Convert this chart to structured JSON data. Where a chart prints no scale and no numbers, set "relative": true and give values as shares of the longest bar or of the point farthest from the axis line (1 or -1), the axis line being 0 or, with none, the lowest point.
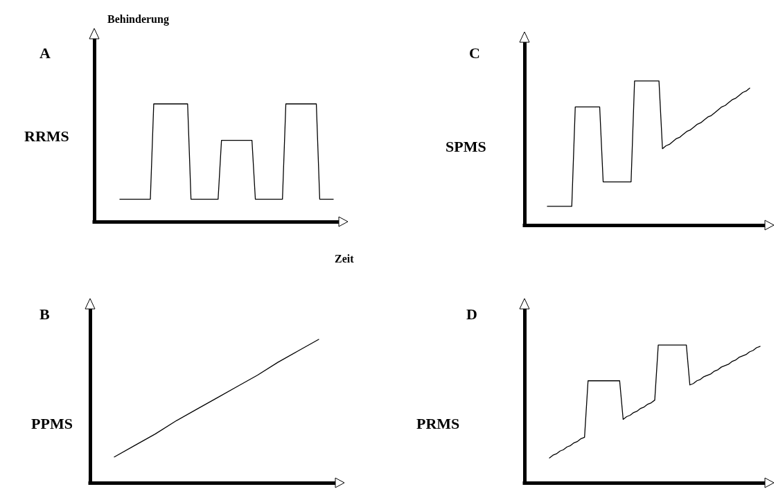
{
  "chart_data": [
    {
      "type": "line",
      "title": "A",
      "subtitle": "RRMS",
      "ylabel": "Behinderung",
      "xlabel": "Zeit",
      "relative": true,
      "categories": [
        null,
        null,
        null,
        null,
        null,
        null,
        null,
        null,
        null,
        null,
        null,
        null,
        null,
        null,
        null,
        null,
        null,
        null,
        null,
        null,
        null,
        null,
        null,
        null,
        null,
        null,
        null,
        null,
        null,
        null,
        null,
        null,
        null,
        null,
        null,
        null,
        null,
        null,
        null,
        null,
        null,
        null,
        null,
        null,
        null,
        null,
        null,
        null,
        null,
        null,
        null,
        null,
        null,
        null,
        null,
        null,
        null,
        null,
        null,
        null,
        null,
        null,
        null,
        null
      ],
      "series": [
        {
          "color": "#000000",
          "values": [
            0.19,
            0.19,
            0.19,
            0.19,
            0.19,
            0.19,
            0.19,
            0.19,
            0.19,
            0.19,
            1,
            1,
            1,
            1,
            1,
            1,
            1,
            1,
            1,
            1,
            1,
            0.19,
            0.19,
            0.19,
            0.19,
            0.19,
            0.19,
            0.19,
            0.19,
            0.19,
            0.69,
            0.69,
            0.69,
            0.69,
            0.69,
            0.69,
            0.69,
            0.69,
            0.69,
            0.69,
            0.19,
            0.19,
            0.19,
            0.19,
            0.19,
            0.19,
            0.19,
            0.19,
            0.19,
            1,
            1,
            1,
            1,
            1,
            1,
            1,
            1,
            1,
            1,
            0.19,
            0.19,
            0.19,
            0.19,
            0.19
          ]
        }
      ]
    },
    {
      "type": "line",
      "title": "C",
      "subtitle": "SPMS",
      "relative": true,
      "categories": [
        null,
        null,
        null,
        null,
        null,
        null,
        null,
        null,
        null,
        null,
        null,
        null,
        null,
        null,
        null,
        null,
        null,
        null,
        null,
        null,
        null,
        null,
        null,
        null,
        null,
        null,
        null,
        null,
        null,
        null,
        null,
        null,
        null,
        null,
        null,
        null,
        null,
        null,
        null,
        null,
        null,
        null,
        null,
        null,
        null,
        null,
        null,
        null,
        null,
        null,
        null,
        null,
        null,
        null,
        null,
        null,
        null,
        null,
        null
      ],
      "series": [
        {
          "color": "#000000",
          "values": [
            0.13,
            0.13,
            0.13,
            0.13,
            0.13,
            0.13,
            0.13,
            0.13,
            0.82,
            0.82,
            0.82,
            0.82,
            0.82,
            0.82,
            0.82,
            0.82,
            0.3,
            0.3,
            0.3,
            0.3,
            0.3,
            0.3,
            0.3,
            0.3,
            0.3,
            1,
            1,
            1,
            1,
            1,
            1,
            1,
            1,
            0.53,
            0.55,
            0.56,
            0.58,
            0.6,
            0.61,
            0.63,
            0.65,
            0.66,
            0.68,
            0.7,
            0.71,
            0.73,
            0.75,
            0.76,
            0.78,
            0.8,
            0.82,
            0.83,
            0.85,
            0.87,
            0.88,
            0.9,
            0.92,
            0.93,
            0.95
          ]
        }
      ]
    },
    {
      "type": "line",
      "title": "B",
      "subtitle": "PPMS",
      "relative": true,
      "categories": [
        null,
        null,
        null,
        null,
        null,
        null,
        null,
        null,
        null,
        null,
        null
      ],
      "series": [
        {
          "color": "#000000",
          "values": [
            0.18,
            0.26,
            0.34,
            0.43,
            0.51,
            0.59,
            0.67,
            0.75,
            0.84,
            0.92,
            1
          ]
        }
      ]
    },
    {
      "type": "line",
      "title": "D",
      "subtitle": "PRMS",
      "relative": true,
      "categories": [
        null,
        null,
        null,
        null,
        null,
        null,
        null,
        null,
        null,
        null,
        null,
        null,
        null,
        null,
        null,
        null,
        null,
        null,
        null,
        null,
        null,
        null,
        null,
        null,
        null,
        null,
        null,
        null,
        null,
        null,
        null,
        null,
        null,
        null,
        null,
        null,
        null,
        null,
        null,
        null,
        null,
        null,
        null,
        null,
        null,
        null,
        null,
        null,
        null,
        null,
        null,
        null,
        null,
        null,
        null,
        null,
        null,
        null,
        null,
        null,
        null
      ],
      "series": [
        {
          "color": "#000000",
          "values": [
            0.18,
            0.2,
            0.21,
            0.23,
            0.24,
            0.26,
            0.27,
            0.29,
            0.3,
            0.32,
            0.33,
            0.74,
            0.74,
            0.74,
            0.74,
            0.74,
            0.74,
            0.74,
            0.74,
            0.74,
            0.74,
            0.46,
            0.48,
            0.49,
            0.51,
            0.52,
            0.54,
            0.55,
            0.57,
            0.58,
            0.6,
            1,
            1,
            1,
            1,
            1,
            1,
            1,
            1,
            1,
            0.71,
            0.72,
            0.74,
            0.75,
            0.77,
            0.78,
            0.79,
            0.81,
            0.82,
            0.84,
            0.85,
            0.86,
            0.88,
            0.89,
            0.91,
            0.92,
            0.93,
            0.95,
            0.96,
            0.98,
            0.99
          ]
        }
      ]
    }
  ]
}
